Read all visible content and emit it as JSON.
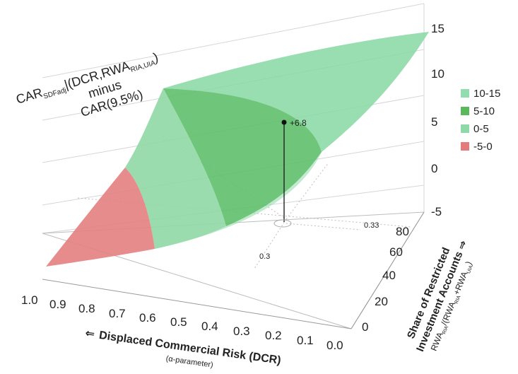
{
  "chart_data": {
    "type": "surface-3d",
    "z_title": {
      "line1_main": "CAR",
      "line1_sub": "SDFadj",
      "line1_rest": "|(DCR,RWA",
      "line1_sub2": "RIA,UIA",
      "line1_end": ")",
      "line2": "minus",
      "line3": "CAR(9.5%)"
    },
    "x_axis": {
      "label_arrow": "⇐",
      "label": "Displaced Commercial Risk (DCR)",
      "sublabel": "(α-parameter)",
      "ticks": [
        "1.0",
        "0.9",
        "0.8",
        "0.7",
        "0.6",
        "0.5",
        "0.4",
        "0.3",
        "0.2",
        "0.1",
        "0.0"
      ]
    },
    "y_axis": {
      "label_line1": "Share of Restricted",
      "label_line2": "Investment Accounts ⇒",
      "formula_parts": [
        "RWA",
        "RIA",
        "/(RWA",
        "RIA",
        "+RWA",
        "UIA",
        ")"
      ],
      "ticks": [
        "0",
        "20",
        "40",
        "60",
        "80"
      ]
    },
    "z_axis": {
      "ticks": [
        "-5",
        "0",
        "5",
        "10",
        "15"
      ],
      "range": [
        -5,
        15
      ]
    },
    "legend": [
      {
        "label": "10-15",
        "color": "#92dcaf"
      },
      {
        "label": "5-10",
        "color": "#5cb85c"
      },
      {
        "label": "0-5",
        "color": "#8fd9a8"
      },
      {
        "label": "-5-0",
        "color": "#e47a7a"
      }
    ],
    "annotation": {
      "value_label": "+6.8",
      "x": 0.3,
      "y_share": 0.33,
      "x_label": "0.3",
      "y_label": "0.33"
    },
    "bands": [
      {
        "range": "10-15",
        "color": "#7fd49b"
      },
      {
        "range": "5-10",
        "color": "#5fbf6a"
      },
      {
        "range": "0-5",
        "color": "#90d8a6"
      },
      {
        "range": "-5-0",
        "color": "#e58080"
      }
    ]
  }
}
